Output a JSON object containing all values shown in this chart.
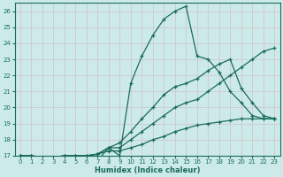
{
  "xlabel": "Humidex (Indice chaleur)",
  "bg_color": "#cceaea",
  "grid_color": "#d0c8c8",
  "line_color": "#1a6b5a",
  "xlim": [
    -0.5,
    23.5
  ],
  "ylim": [
    17,
    26.5
  ],
  "xticks": [
    0,
    1,
    2,
    3,
    4,
    5,
    6,
    7,
    8,
    9,
    10,
    11,
    12,
    13,
    14,
    15,
    16,
    17,
    18,
    19,
    20,
    21,
    22,
    23
  ],
  "yticks": [
    17,
    18,
    19,
    20,
    21,
    22,
    23,
    24,
    25,
    26
  ],
  "series": [
    {
      "x": [
        0,
        1,
        2,
        3,
        4,
        5,
        6,
        7,
        8,
        9,
        10,
        11,
        12,
        13,
        14,
        15,
        16,
        17,
        18,
        19,
        20,
        21,
        22,
        23
      ],
      "y": [
        17.0,
        16.9,
        16.7,
        16.7,
        16.7,
        16.7,
        16.7,
        16.7,
        17.5,
        17.0,
        21.5,
        23.2,
        24.5,
        25.5,
        26.0,
        26.3,
        23.2,
        23.0,
        22.2,
        21.0,
        20.3,
        19.5,
        19.3,
        19.3
      ]
    },
    {
      "x": [
        0,
        1,
        2,
        3,
        4,
        5,
        6,
        7,
        8,
        9,
        10,
        11,
        12,
        13,
        14,
        15,
        16,
        17,
        18,
        19,
        20,
        21,
        22,
        23
      ],
      "y": [
        17.0,
        17.0,
        16.9,
        16.9,
        17.0,
        17.0,
        17.0,
        17.1,
        17.5,
        17.8,
        18.5,
        19.3,
        20.0,
        20.8,
        21.3,
        21.5,
        21.8,
        22.3,
        22.7,
        23.0,
        21.2,
        20.3,
        19.5,
        19.3
      ]
    },
    {
      "x": [
        0,
        1,
        2,
        3,
        4,
        5,
        6,
        7,
        8,
        9,
        10,
        11,
        12,
        13,
        14,
        15,
        16,
        17,
        18,
        19,
        20,
        21,
        22,
        23
      ],
      "y": [
        17.0,
        17.0,
        16.9,
        16.9,
        17.0,
        17.0,
        17.0,
        17.1,
        17.5,
        17.5,
        18.0,
        18.5,
        19.0,
        19.5,
        20.0,
        20.3,
        20.5,
        21.0,
        21.5,
        22.0,
        22.5,
        23.0,
        23.5,
        23.7
      ]
    },
    {
      "x": [
        0,
        1,
        2,
        3,
        4,
        5,
        6,
        7,
        8,
        9,
        10,
        11,
        12,
        13,
        14,
        15,
        16,
        17,
        18,
        19,
        20,
        21,
        22,
        23
      ],
      "y": [
        17.0,
        17.0,
        16.9,
        16.9,
        17.0,
        17.0,
        17.0,
        17.1,
        17.3,
        17.3,
        17.5,
        17.7,
        18.0,
        18.2,
        18.5,
        18.7,
        18.9,
        19.0,
        19.1,
        19.2,
        19.3,
        19.3,
        19.3,
        19.3
      ]
    }
  ]
}
